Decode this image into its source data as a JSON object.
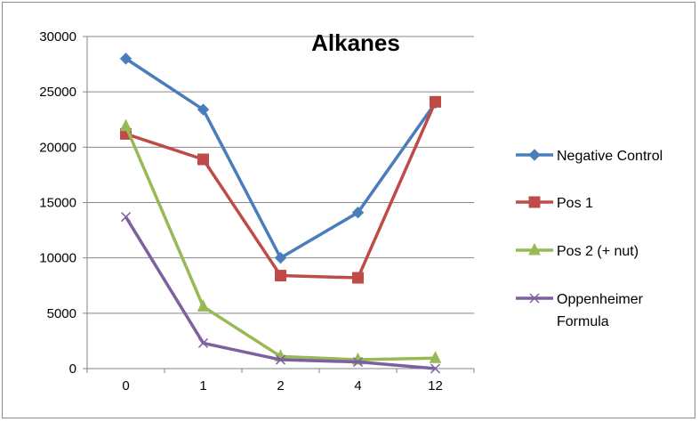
{
  "chart_data": {
    "type": "line",
    "title": "Alkanes",
    "xlabel": "",
    "ylabel": "",
    "categories": [
      "0",
      "1",
      "2",
      "4",
      "12"
    ],
    "ylim": [
      0,
      30000
    ],
    "yticks": [
      0,
      5000,
      10000,
      15000,
      20000,
      25000,
      30000
    ],
    "grid": "horizontal",
    "legend_position": "right",
    "series": [
      {
        "name": "Negative Control",
        "values": [
          28000,
          23400,
          10000,
          14100,
          24000
        ],
        "color": "#4a7ebb",
        "marker": "diamond"
      },
      {
        "name": "Pos 1",
        "values": [
          21200,
          18900,
          8400,
          8200,
          24100
        ],
        "color": "#be4b48",
        "marker": "square"
      },
      {
        "name": "Pos 2 (+ nut)",
        "values": [
          21900,
          5600,
          1100,
          800,
          950
        ],
        "color": "#98b954",
        "marker": "triangle"
      },
      {
        "name": "Oppenheimer Formula",
        "legend_lines": [
          "Oppenheimer",
          "Formula"
        ],
        "values": [
          13700,
          2300,
          800,
          600,
          0
        ],
        "color": "#7d60a0",
        "marker": "x"
      }
    ]
  }
}
